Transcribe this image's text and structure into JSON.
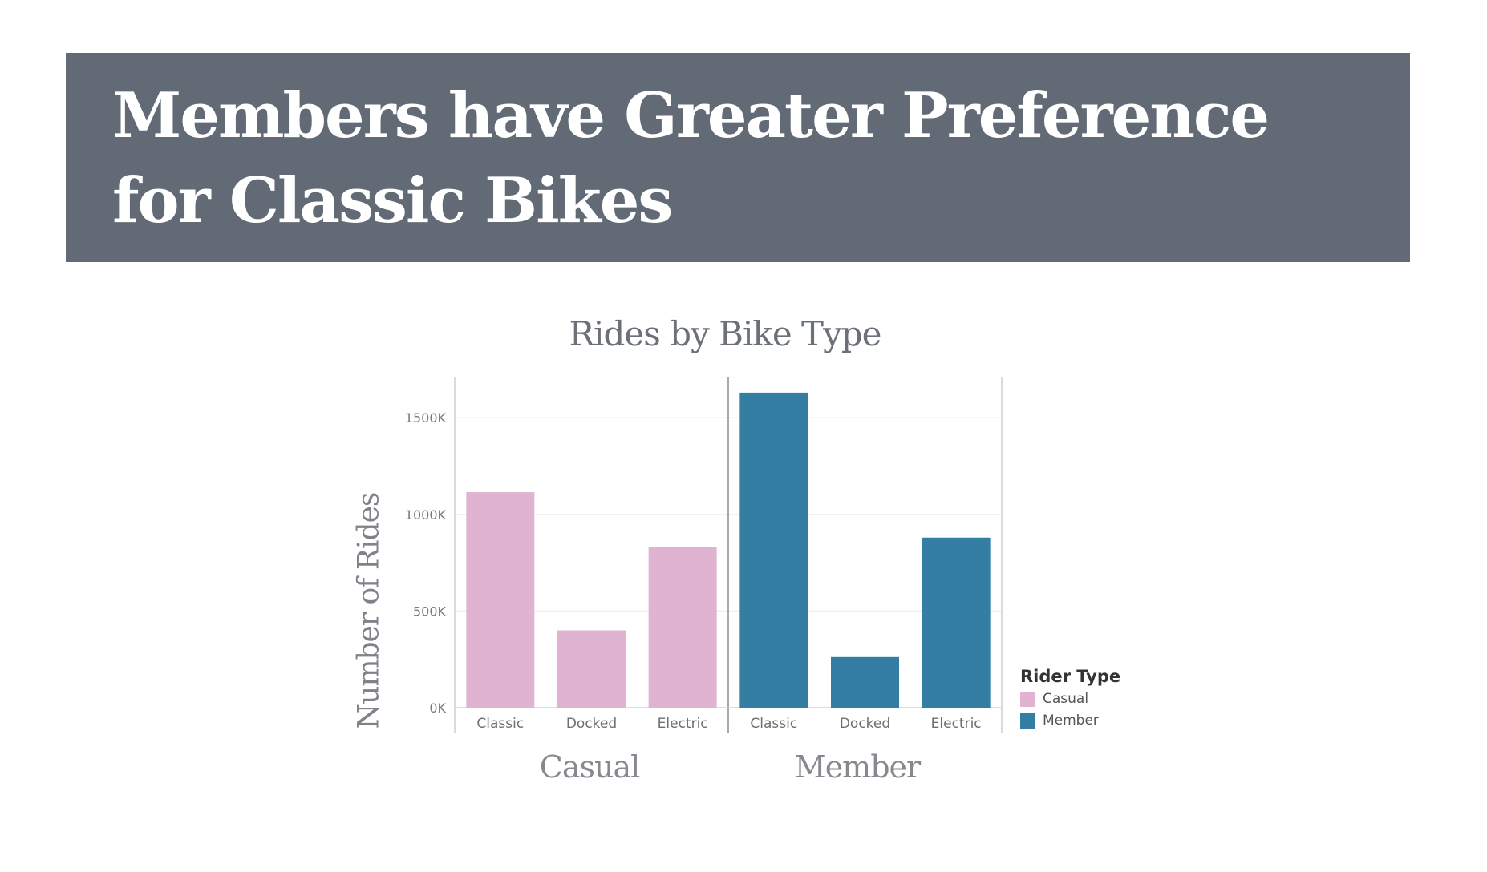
{
  "banner": {
    "title": "Members have Greater Preference for Classic Bikes"
  },
  "legend": {
    "title": "Rider Type",
    "items": [
      {
        "label": "Casual",
        "color": "#e0b4d1"
      },
      {
        "label": "Member",
        "color": "#337ea2"
      }
    ]
  },
  "chart_data": {
    "type": "bar",
    "title": "Rides by Bike Type",
    "ylabel": "Number of Rides",
    "xlabel": "",
    "ylim": [
      0,
      1700000
    ],
    "yticks": [
      0,
      500000,
      1000000,
      1500000
    ],
    "ytick_labels": [
      "0K",
      "500K",
      "1000K",
      "1500K"
    ],
    "grid": true,
    "legend_position": "bottom-right",
    "panels": [
      {
        "name": "Casual",
        "color": "#e0b4d1",
        "categories": [
          "Classic",
          "Docked",
          "Electric"
        ],
        "values": [
          1115000,
          400000,
          830000
        ]
      },
      {
        "name": "Member",
        "color": "#337ea2",
        "categories": [
          "Classic",
          "Docked",
          "Electric"
        ],
        "values": [
          1630000,
          262000,
          880000
        ]
      }
    ]
  }
}
